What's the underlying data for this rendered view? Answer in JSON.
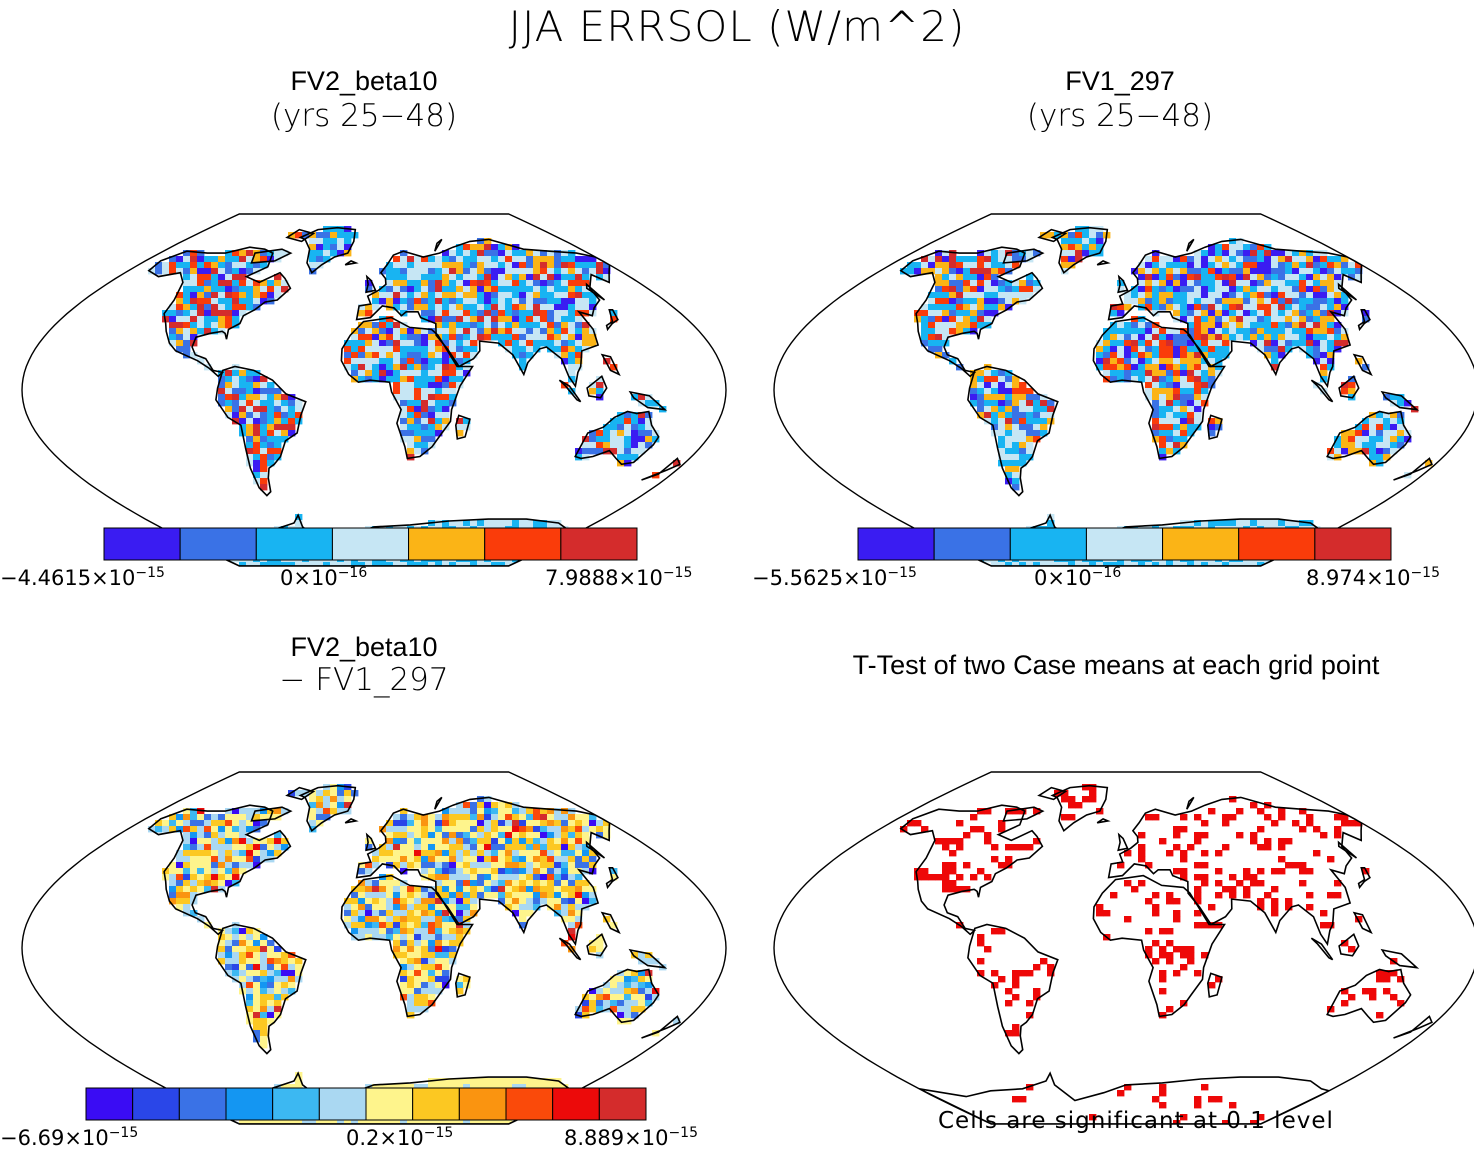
{
  "figure": {
    "title": "JJA ERRSOL (W/m^2)",
    "note": "Cells are significant at 0.1 level"
  },
  "chart_data": [
    {
      "type": "heatmap",
      "title": "FV2_beta10",
      "subtitle": "(yrs 25−48)",
      "colorbar": {
        "colors": [
          "#3a1cf2",
          "#3a72e6",
          "#18b4f2",
          "#c6e6f4",
          "#fbb416",
          "#fa3c0a",
          "#d42c2c"
        ],
        "ticks": [
          {
            "mantissa": "−4.4615",
            "exponent": "−15"
          },
          {
            "mantissa": "0",
            "exponent": "−16"
          },
          {
            "mantissa": "7.9888",
            "exponent": "−15"
          }
        ]
      }
    },
    {
      "type": "heatmap",
      "title": "FV1_297",
      "subtitle": "(yrs 25−48)",
      "colorbar": {
        "colors": [
          "#3a1cf2",
          "#3a72e6",
          "#18b4f2",
          "#c6e6f4",
          "#fbb416",
          "#fa3c0a",
          "#d42c2c"
        ],
        "ticks": [
          {
            "mantissa": "−5.5625",
            "exponent": "−15"
          },
          {
            "mantissa": "0",
            "exponent": "−16"
          },
          {
            "mantissa": "8.974",
            "exponent": "−15"
          }
        ]
      }
    },
    {
      "type": "heatmap",
      "title": "FV2_beta10",
      "subtitle": "− FV1_297",
      "colorbar": {
        "colors": [
          "#3a0cf4",
          "#2a46e8",
          "#3a72e6",
          "#1496f2",
          "#3cb8f2",
          "#aad8f2",
          "#fef48c",
          "#fcc822",
          "#fa9410",
          "#fa4a0a",
          "#ec0a0a",
          "#d42c2c"
        ],
        "ticks": [
          {
            "mantissa": "−6.69",
            "exponent": "−15"
          },
          {
            "mantissa": "0.2",
            "exponent": "−15"
          },
          {
            "mantissa": "8.889",
            "exponent": "−15"
          }
        ]
      }
    },
    {
      "type": "heatmap",
      "title": "T-Test of two Case means at each grid point",
      "colors": [
        "#ee0808"
      ]
    }
  ]
}
